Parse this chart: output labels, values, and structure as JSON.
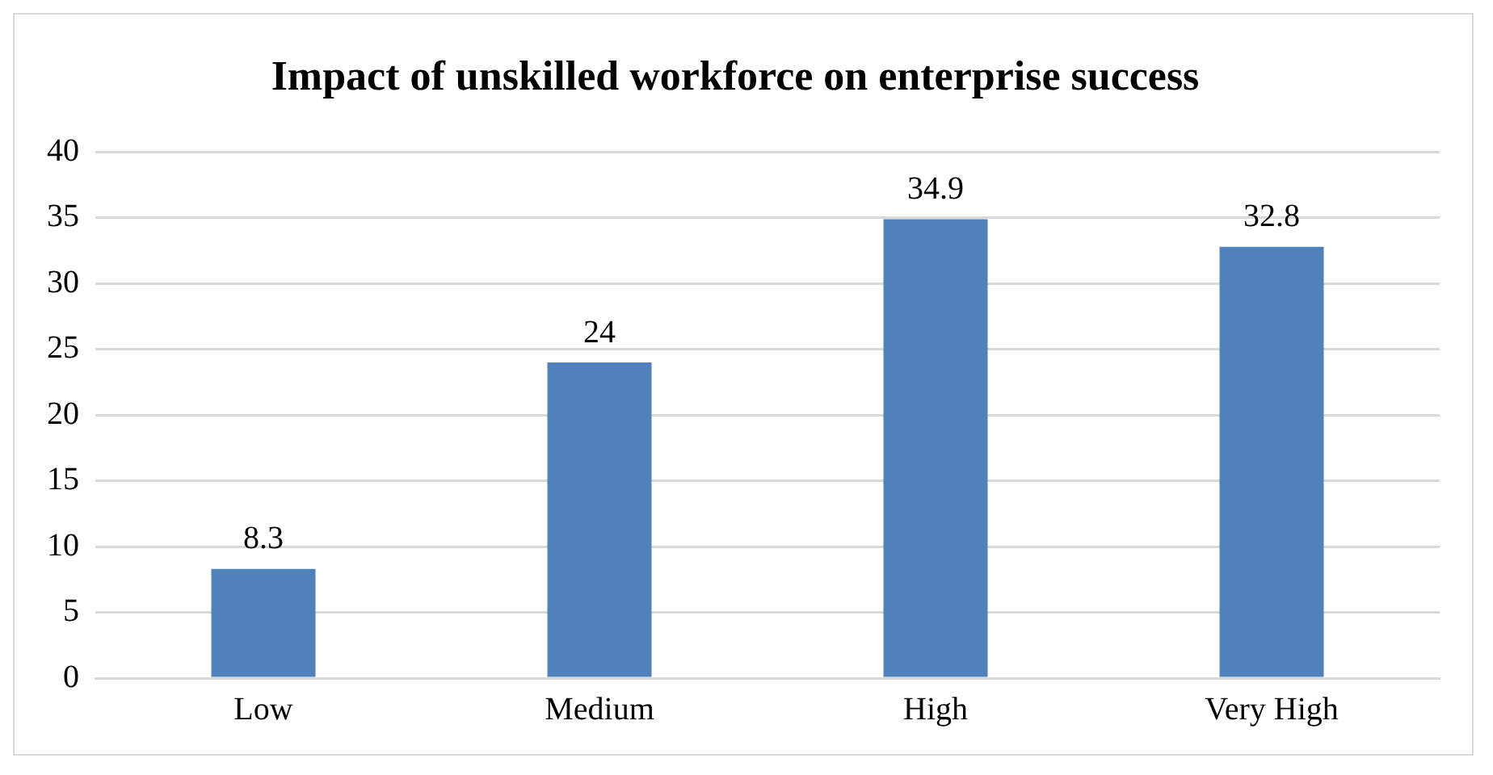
{
  "chart_data": {
    "type": "bar",
    "title": "Impact of unskilled workforce on enterprise success",
    "categories": [
      "Low",
      "Medium",
      "High",
      "Very High"
    ],
    "values": [
      8.3,
      24,
      34.9,
      32.8
    ],
    "color": "#4f81bd",
    "ylim": [
      0,
      40
    ],
    "yticks": [
      0,
      5,
      10,
      15,
      20,
      25,
      30,
      35,
      40
    ],
    "grid": "y",
    "data_labels": true,
    "legend": false
  }
}
